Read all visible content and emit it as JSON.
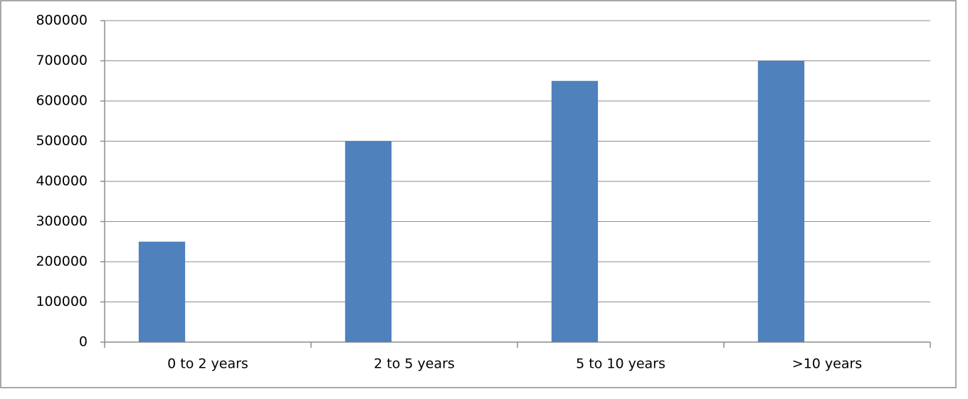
{
  "chart_data": {
    "type": "bar",
    "categories": [
      "0 to 2 years",
      "2 to 5 years",
      "5 to 10 years",
      ">10 years"
    ],
    "values": [
      250000,
      500000,
      650000,
      700000
    ],
    "color": "#4f81bd",
    "ylim": [
      0,
      800000
    ],
    "yticks": [
      0,
      100000,
      200000,
      300000,
      400000,
      500000,
      600000,
      700000,
      800000
    ],
    "grid": true
  }
}
